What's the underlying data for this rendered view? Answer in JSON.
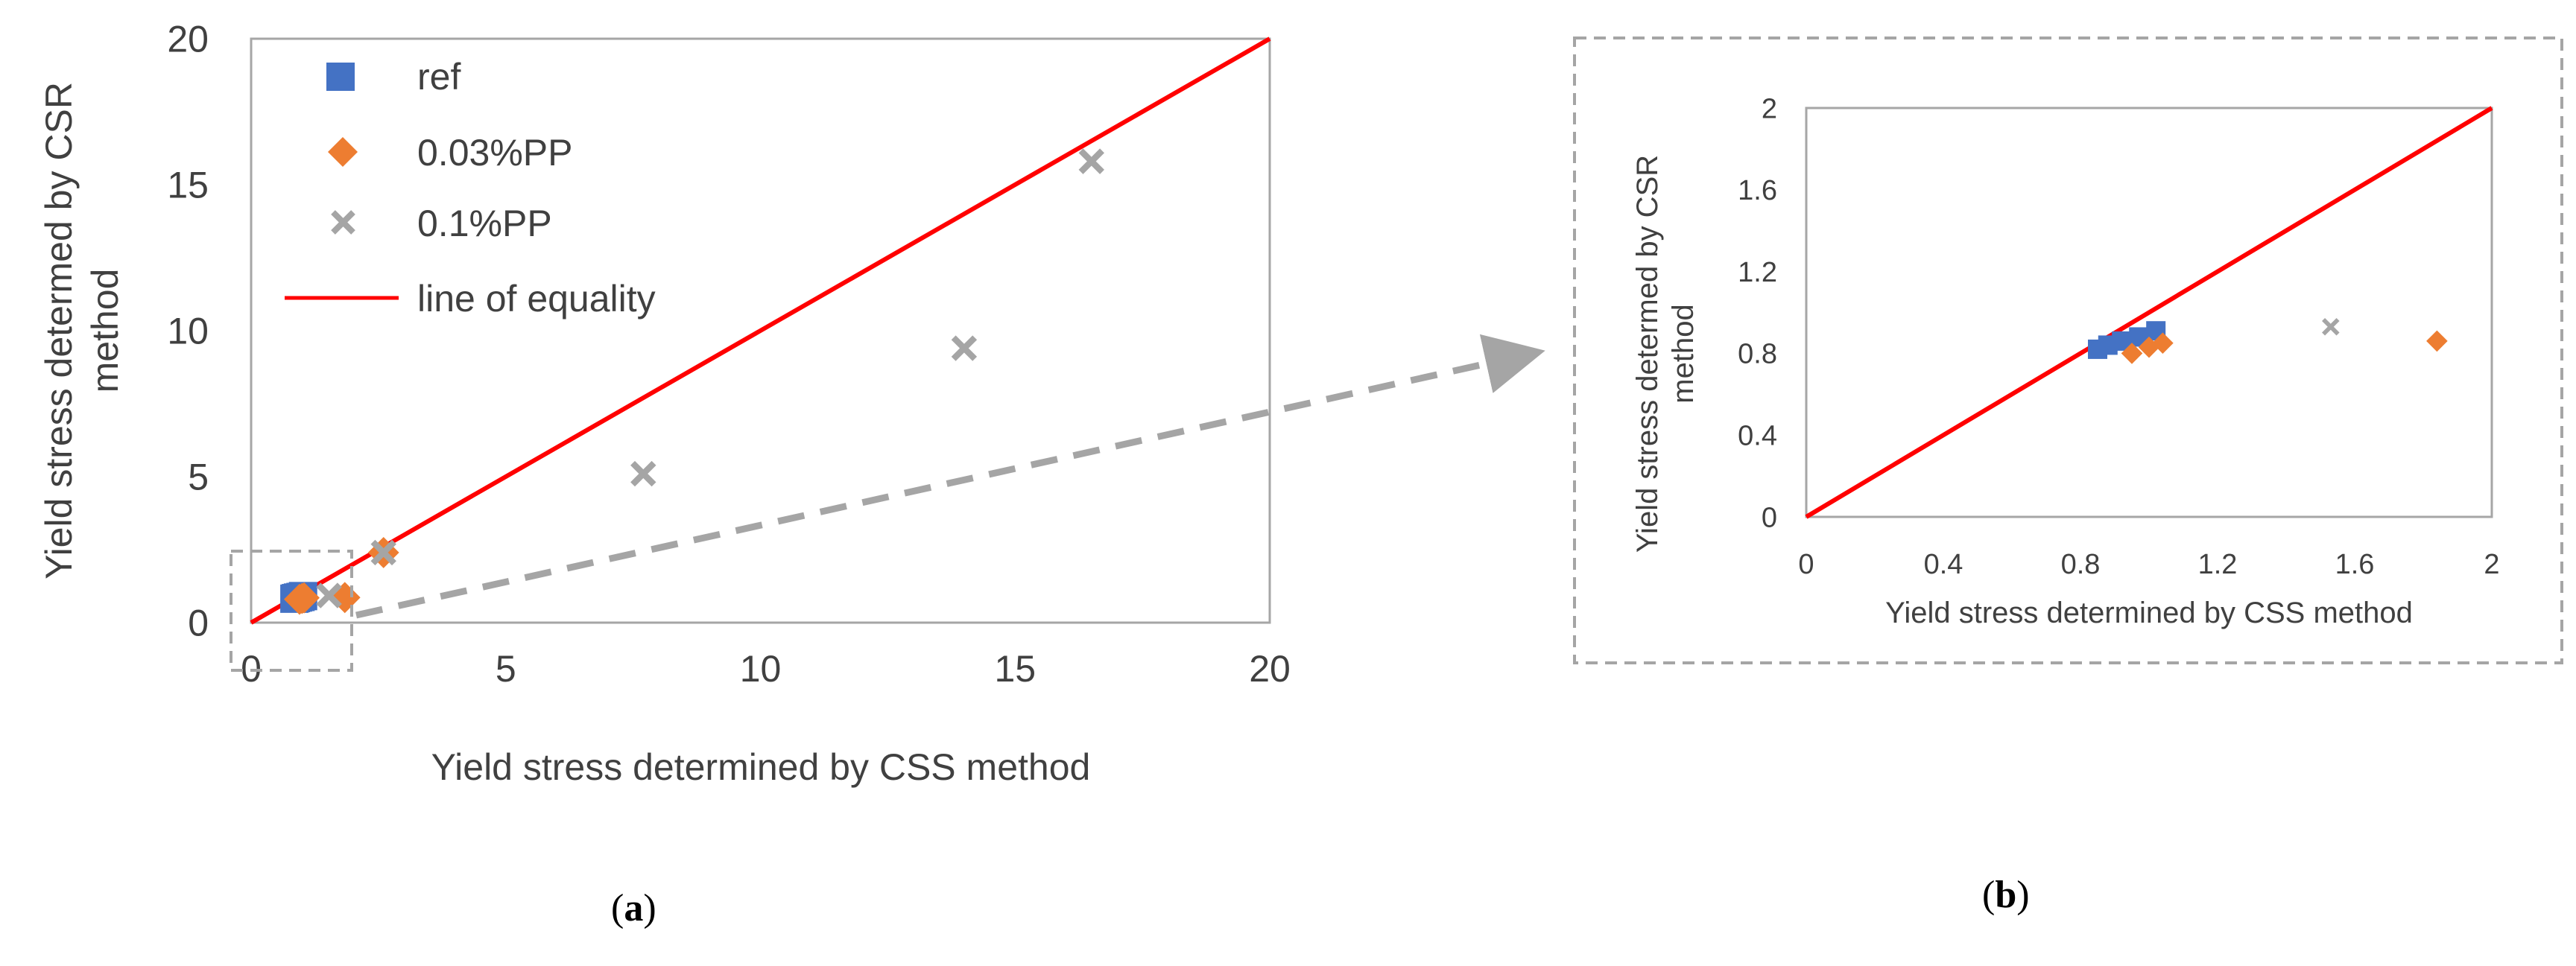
{
  "chart_data": [
    {
      "panel": "a",
      "type": "scatter",
      "xlabel": "Yield stress determined by CSS method",
      "ylabel_lines": [
        "Yield stress determed by CSR",
        "method"
      ],
      "xlim": [
        0,
        20
      ],
      "ylim": [
        0,
        20
      ],
      "xticks": [
        "0",
        "5",
        "10",
        "15",
        "20"
      ],
      "yticks": [
        "0",
        "5",
        "10",
        "15",
        "20"
      ],
      "grid": false,
      "legend": "top-left",
      "series": [
        {
          "name": "ref",
          "marker": "square",
          "color": "#4472C4",
          "points": [
            [
              0.85,
              0.82
            ],
            [
              0.88,
              0.84
            ],
            [
              0.92,
              0.86
            ],
            [
              0.97,
              0.88
            ],
            [
              1.02,
              0.91
            ]
          ]
        },
        {
          "name": "0.03%PP",
          "marker": "diamond",
          "color": "#ED7D31",
          "points": [
            [
              0.95,
              0.8
            ],
            [
              1.0,
              0.83
            ],
            [
              1.04,
              0.85
            ],
            [
              1.84,
              0.86
            ],
            [
              2.6,
              2.4
            ]
          ]
        },
        {
          "name": "0.1%PP",
          "marker": "x",
          "color": "#A5A5A5",
          "points": [
            [
              1.53,
              0.93
            ],
            [
              2.6,
              2.4
            ],
            [
              7.7,
              5.1
            ],
            [
              14.0,
              9.4
            ],
            [
              16.5,
              15.8
            ]
          ]
        },
        {
          "name": "line of equality",
          "type": "line",
          "color": "#FF0000",
          "points": [
            [
              0,
              0
            ],
            [
              20,
              20
            ]
          ]
        }
      ]
    },
    {
      "panel": "b",
      "type": "scatter",
      "xlabel": "Yield stress determined by CSS method",
      "ylabel_lines": [
        "Yield stress determed by CSR",
        "method"
      ],
      "xlim": [
        0,
        2
      ],
      "ylim": [
        0,
        2
      ],
      "xticks": [
        "0",
        "0.4",
        "0.8",
        "1.2",
        "1.6",
        "2"
      ],
      "yticks": [
        "0",
        "0.4",
        "0.8",
        "1.2",
        "1.6",
        "2"
      ],
      "grid": false,
      "legend": "none",
      "series": [
        {
          "name": "ref",
          "marker": "square",
          "color": "#4472C4",
          "points": [
            [
              0.85,
              0.82
            ],
            [
              0.88,
              0.84
            ],
            [
              0.92,
              0.86
            ],
            [
              0.97,
              0.88
            ],
            [
              1.02,
              0.91
            ]
          ]
        },
        {
          "name": "0.03%PP",
          "marker": "diamond",
          "color": "#ED7D31",
          "points": [
            [
              0.95,
              0.8
            ],
            [
              1.0,
              0.83
            ],
            [
              1.04,
              0.85
            ],
            [
              1.84,
              0.86
            ]
          ]
        },
        {
          "name": "0.1%PP",
          "marker": "x",
          "color": "#A5A5A5",
          "points": [
            [
              1.53,
              0.93
            ]
          ]
        },
        {
          "name": "line of equality",
          "type": "line",
          "color": "#FF0000",
          "points": [
            [
              0,
              0
            ],
            [
              2,
              2
            ]
          ]
        }
      ]
    }
  ],
  "panel_labels": {
    "a": "a",
    "b": "b"
  }
}
